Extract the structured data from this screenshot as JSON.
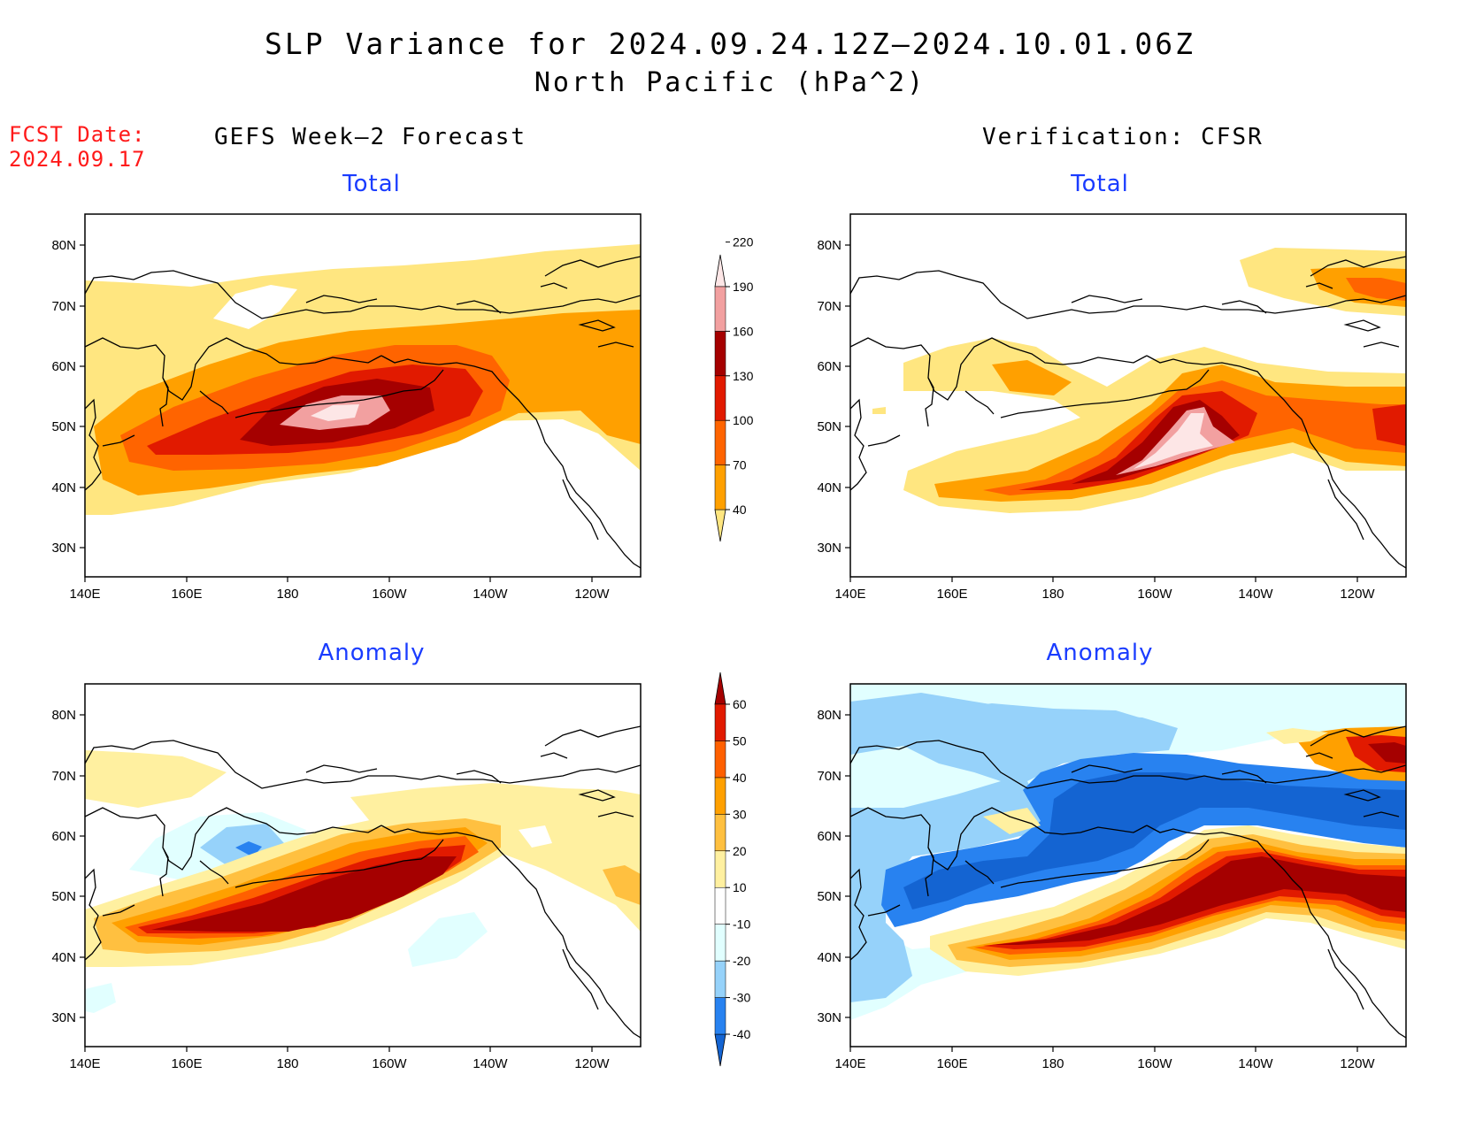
{
  "title": "SLP Variance for 2024.09.24.12Z–2024.10.01.06Z",
  "subtitle": "North Pacific (hPa^2)",
  "forecast_date": {
    "label": "FCST Date:",
    "value": "2024.09.17"
  },
  "columns": {
    "left": "GEFS Week–2 Forecast",
    "right": "Verification: CFSR"
  },
  "panels": {
    "gefs_total": "Total",
    "cfsr_total": "Total",
    "gefs_anomaly": "Anomaly",
    "cfsr_anomaly": "Anomaly"
  },
  "axes": {
    "lon_labels": [
      "140E",
      "160E",
      "180",
      "160W",
      "140W",
      "120W"
    ],
    "lat_labels": [
      "80N",
      "70N",
      "60N",
      "50N",
      "40N",
      "30N"
    ]
  },
  "colorbars": {
    "total": {
      "levels": [
        "40",
        "70",
        "100",
        "130",
        "160",
        "190",
        "220"
      ],
      "colors": [
        "#ffe680",
        "#ffa000",
        "#ff6400",
        "#e11a00",
        "#a50000",
        "#f2a0a0",
        "#fde6e6"
      ]
    },
    "anomaly": {
      "levels": [
        "-40",
        "-30",
        "-20",
        "-10",
        "10",
        "20",
        "30",
        "40",
        "50",
        "60"
      ],
      "colors": [
        "#1464d2",
        "#2882f0",
        "#96d2fa",
        "#e1ffff",
        "#ffffff",
        "#fff0a0",
        "#ffc040",
        "#ffa000",
        "#ff6000",
        "#e11a00",
        "#a50000"
      ]
    }
  }
}
